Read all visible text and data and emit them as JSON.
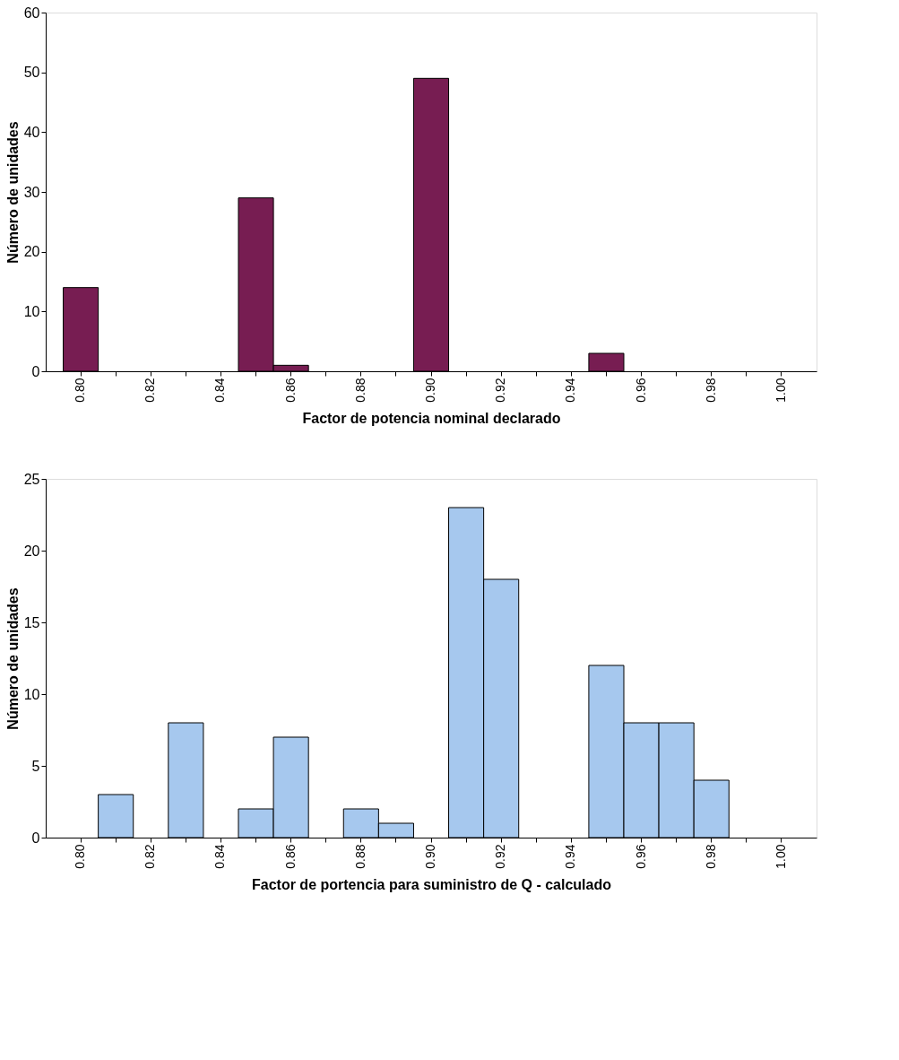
{
  "chart_data": [
    {
      "type": "bar",
      "categories": [
        "0.80",
        null,
        "0.82",
        null,
        "0.84",
        null,
        "0.86",
        null,
        "0.88",
        null,
        "0.90",
        null,
        "0.92",
        null,
        "0.94",
        null,
        "0.96",
        null,
        "0.98",
        null,
        "1.00"
      ],
      "values": [
        14,
        null,
        null,
        null,
        null,
        29,
        1,
        null,
        null,
        null,
        49,
        null,
        null,
        null,
        null,
        3,
        null,
        null,
        null,
        null,
        null
      ],
      "color": "#771d52",
      "xlabel": "Factor de potencia nominal declarado",
      "ylabel": "Número de unidades",
      "ylim": [
        0,
        60
      ],
      "yticks": [
        0,
        10,
        20,
        30,
        40,
        50,
        60
      ],
      "grid": false
    },
    {
      "type": "bar",
      "categories": [
        "0.80",
        null,
        "0.82",
        null,
        "0.84",
        null,
        "0.86",
        null,
        "0.88",
        null,
        "0.90",
        null,
        "0.92",
        null,
        "0.94",
        null,
        "0.96",
        null,
        "0.98",
        null,
        "1.00"
      ],
      "values": [
        null,
        3,
        null,
        8,
        null,
        2,
        7,
        null,
        2,
        1,
        null,
        23,
        18,
        null,
        null,
        12,
        8,
        8,
        4,
        null,
        null
      ],
      "color": "#a6c8ee",
      "xlabel": "Factor de portencia para suministro de Q - calculado",
      "ylabel": "Número de unidades",
      "ylim": [
        0,
        25
      ],
      "yticks": [
        0,
        5,
        10,
        15,
        20,
        25
      ],
      "grid": false
    }
  ]
}
